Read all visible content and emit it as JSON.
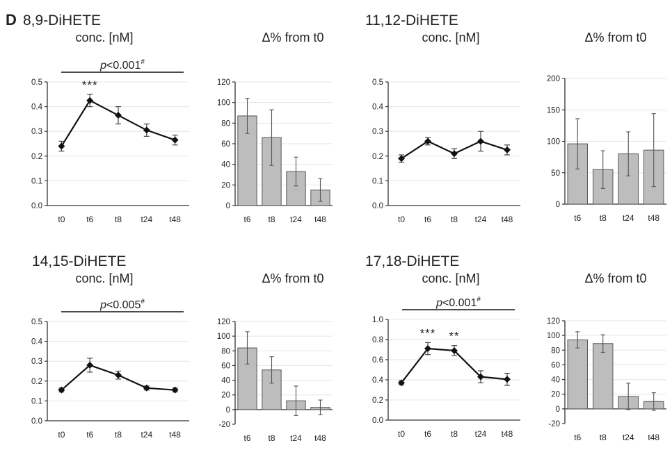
{
  "panel_letter": "D",
  "compounds": [
    {
      "name": "8,9-DiHETE",
      "line_title": "conc. [nM]",
      "bar_title": "Δ% from t0"
    },
    {
      "name": "11,12-DiHETE",
      "line_title": "conc. [nM]",
      "bar_title": "Δ% from t0"
    },
    {
      "name": "14,15-DiHETE",
      "line_title": "conc. [nM]",
      "bar_title": "Δ% from t0"
    },
    {
      "name": "17,18-DiHETE",
      "line_title": "conc. [nM]",
      "bar_title": "Δ% from t0"
    }
  ],
  "chart_data": [
    {
      "type": "line",
      "title": "conc. [nM]",
      "categories": [
        "t0",
        "t6",
        "t8",
        "t24",
        "t48"
      ],
      "values": [
        0.24,
        0.425,
        0.365,
        0.305,
        0.265
      ],
      "errors": [
        0.02,
        0.025,
        0.035,
        0.025,
        0.02
      ],
      "ylim": [
        0,
        0.5
      ],
      "yticks": [
        0.0,
        0.1,
        0.2,
        0.3,
        0.4,
        0.5
      ],
      "ytick_labels": [
        "0.0",
        "0.1",
        "0.2",
        "0.3",
        "0.4",
        "0.5"
      ],
      "pvalue": "p<0.001",
      "pvalue_mark": "#",
      "stars": [
        {
          "category": "t6",
          "text": "***"
        }
      ]
    },
    {
      "type": "bar",
      "title": "Δ% from t0",
      "categories": [
        "t6",
        "t8",
        "t24",
        "t48"
      ],
      "values": [
        87,
        66,
        33,
        15
      ],
      "errors": [
        17,
        27,
        14,
        11
      ],
      "ylim": [
        0,
        120
      ],
      "yticks": [
        0,
        20,
        40,
        60,
        80,
        100,
        120
      ],
      "ytick_labels": [
        "0",
        "20",
        "40",
        "60",
        "80",
        "100",
        "120"
      ]
    },
    {
      "type": "line",
      "title": "conc. [nM]",
      "categories": [
        "t0",
        "t6",
        "t8",
        "t24",
        "t48"
      ],
      "values": [
        0.19,
        0.26,
        0.21,
        0.26,
        0.225
      ],
      "errors": [
        0.015,
        0.015,
        0.02,
        0.04,
        0.02
      ],
      "ylim": [
        0,
        0.5
      ],
      "yticks": [
        0.0,
        0.1,
        0.2,
        0.3,
        0.4,
        0.5
      ],
      "ytick_labels": [
        "0.0",
        "0.1",
        "0.2",
        "0.3",
        "0.4",
        "0.5"
      ]
    },
    {
      "type": "bar",
      "title": "Δ% from t0",
      "categories": [
        "t6",
        "t8",
        "t24",
        "t48"
      ],
      "values": [
        96,
        55,
        80,
        86
      ],
      "errors": [
        40,
        30,
        35,
        58
      ],
      "ylim": [
        0,
        200
      ],
      "yticks": [
        0,
        50,
        100,
        150,
        200
      ],
      "ytick_labels": [
        "0",
        "50",
        "100",
        "150",
        "200"
      ]
    },
    {
      "type": "line",
      "title": "conc. [nM]",
      "categories": [
        "t0",
        "t6",
        "t8",
        "t24",
        "t48"
      ],
      "values": [
        0.155,
        0.28,
        0.23,
        0.165,
        0.155
      ],
      "errors": [
        0.01,
        0.035,
        0.02,
        0.01,
        0.01
      ],
      "ylim": [
        0,
        0.5
      ],
      "yticks": [
        0.0,
        0.1,
        0.2,
        0.3,
        0.4,
        0.5
      ],
      "ytick_labels": [
        "0.0",
        "0.1",
        "0.2",
        "0.3",
        "0.4",
        "0.5"
      ],
      "pvalue": "p<0.005",
      "pvalue_mark": "#"
    },
    {
      "type": "bar",
      "title": "Δ% from t0",
      "categories": [
        "t6",
        "t8",
        "t24",
        "t48"
      ],
      "values": [
        84,
        54,
        12,
        3
      ],
      "errors": [
        22,
        18,
        20,
        10
      ],
      "ylim": [
        -20,
        120
      ],
      "yticks": [
        -20,
        0,
        20,
        40,
        60,
        80,
        100,
        120
      ],
      "ytick_labels": [
        "-20",
        "0",
        "20",
        "40",
        "60",
        "80",
        "100",
        "120"
      ]
    },
    {
      "type": "line",
      "title": "conc. [nM]",
      "categories": [
        "t0",
        "t6",
        "t8",
        "t24",
        "t48"
      ],
      "values": [
        0.37,
        0.71,
        0.69,
        0.43,
        0.405
      ],
      "errors": [
        0.02,
        0.06,
        0.05,
        0.06,
        0.06
      ],
      "ylim": [
        0,
        1.0
      ],
      "yticks": [
        0.0,
        0.2,
        0.4,
        0.6,
        0.8,
        1.0
      ],
      "ytick_labels": [
        "0.0",
        "0.2",
        "0.4",
        "0.6",
        "0.8",
        "1.0"
      ],
      "pvalue": "p<0.001",
      "pvalue_mark": "#",
      "stars": [
        {
          "category": "t6",
          "text": "***"
        },
        {
          "category": "t8",
          "text": "**"
        }
      ]
    },
    {
      "type": "bar",
      "title": "Δ% from t0",
      "categories": [
        "t6",
        "t8",
        "t24",
        "t48"
      ],
      "values": [
        94,
        89,
        17,
        10
      ],
      "errors": [
        11,
        12,
        18,
        12
      ],
      "ylim": [
        -20,
        120
      ],
      "yticks": [
        -20,
        0,
        20,
        40,
        60,
        80,
        100,
        120
      ],
      "ytick_labels": [
        "-20",
        "0",
        "20",
        "40",
        "60",
        "80",
        "100",
        "120"
      ]
    }
  ]
}
